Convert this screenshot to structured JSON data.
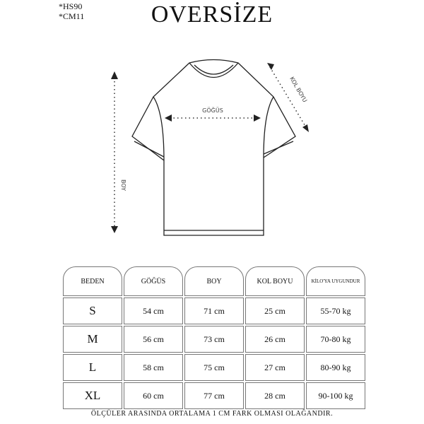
{
  "codes": [
    "*HS90",
    "*CM11"
  ],
  "title": "OVERSİZE",
  "diagram": {
    "chest": "GÖĞÜS",
    "length": "BOY",
    "sleeve": "KOL BOYU"
  },
  "table": {
    "headers": [
      "BEDEN",
      "GÖĞÜS",
      "BOY",
      "KOL BOYU",
      "KİLO'YA UYGUNDUR"
    ],
    "rows": [
      [
        "S",
        "54 cm",
        "71 cm",
        "25  cm",
        "55-70 kg"
      ],
      [
        "M",
        "56 cm",
        "73 cm",
        "26 cm",
        "70-80 kg"
      ],
      [
        "L",
        "58 cm",
        "75 cm",
        "27 cm",
        "80-90 kg"
      ],
      [
        "XL",
        "60 cm",
        "77 cm",
        "28 cm",
        "90-100 kg"
      ]
    ]
  },
  "note": "ÖLÇÜLER ARASINDA ORTALAMA 1 CM FARK OLMASI OLAĞANDIR."
}
